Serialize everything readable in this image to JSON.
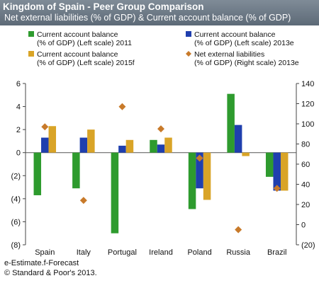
{
  "header": {
    "title": "Kingdom of Spain - Peer Group Comparison",
    "subtitle": "Net external liabilities (% of GDP) & Current account balance (% of GDP)"
  },
  "colors": {
    "header_bg": "#6e7a86",
    "ca_2011": "#2e9b2e",
    "ca_2013e": "#1f3fae",
    "ca_2015f": "#d9a427",
    "nel_2013e": "#c87a2a"
  },
  "chart_data": {
    "type": "bar",
    "categories": [
      "Spain",
      "Italy",
      "Portugal",
      "Ireland",
      "Poland",
      "Russia",
      "Brazil"
    ],
    "series": [
      {
        "name": "Current account balance (% of GDP) (Left scale) 2011",
        "legend_lines": [
          "Current account balance",
          "(% of GDP) (Left scale) 2011"
        ],
        "axis": "left",
        "type": "bar",
        "values": [
          -3.7,
          -3.1,
          -7.0,
          1.1,
          -4.9,
          5.1,
          -2.1
        ]
      },
      {
        "name": "Current account balance (% of GDP) (Left scale) 2013e",
        "legend_lines": [
          "Current account balance",
          "(% of GDP) (Left scale) 2013e"
        ],
        "axis": "left",
        "type": "bar",
        "values": [
          1.3,
          1.3,
          0.6,
          0.7,
          -3.1,
          2.4,
          -3.3
        ]
      },
      {
        "name": "Current account balance (% of GDP) (Left scale) 2015f",
        "legend_lines": [
          "Current account balance",
          "(% of GDP) (Left scale) 2015f"
        ],
        "axis": "left",
        "type": "bar",
        "values": [
          2.3,
          2.0,
          1.1,
          1.3,
          -4.1,
          -0.3,
          -3.3
        ]
      },
      {
        "name": "Net external liabilities (% of GDP) (Right scale) 2013e",
        "legend_lines": [
          "Net external liabilities",
          "(% of GDP) (Right scale) 2013e"
        ],
        "axis": "right",
        "type": "scatter",
        "values": [
          97,
          24,
          117,
          95,
          66,
          -5,
          36
        ]
      }
    ],
    "y_left": {
      "min": -8,
      "max": 6,
      "ticks": [
        6,
        4,
        2,
        0,
        -2,
        -4,
        -6,
        -8
      ],
      "tick_labels": [
        "6",
        "4",
        "2",
        "0",
        "(2)",
        "(4)",
        "(6)",
        "(8)"
      ]
    },
    "y_right": {
      "min": -20,
      "max": 140,
      "ticks": [
        140,
        120,
        100,
        80,
        60,
        40,
        20,
        0,
        -20
      ],
      "tick_labels": [
        "140",
        "120",
        "100",
        "80",
        "60",
        "40",
        "20",
        "0",
        "(20)"
      ]
    },
    "grid": false,
    "legend_position": "top"
  },
  "footer": {
    "note": "e-Estimate.f-Forecast",
    "copyright": "© Standard & Poor's 2013."
  }
}
